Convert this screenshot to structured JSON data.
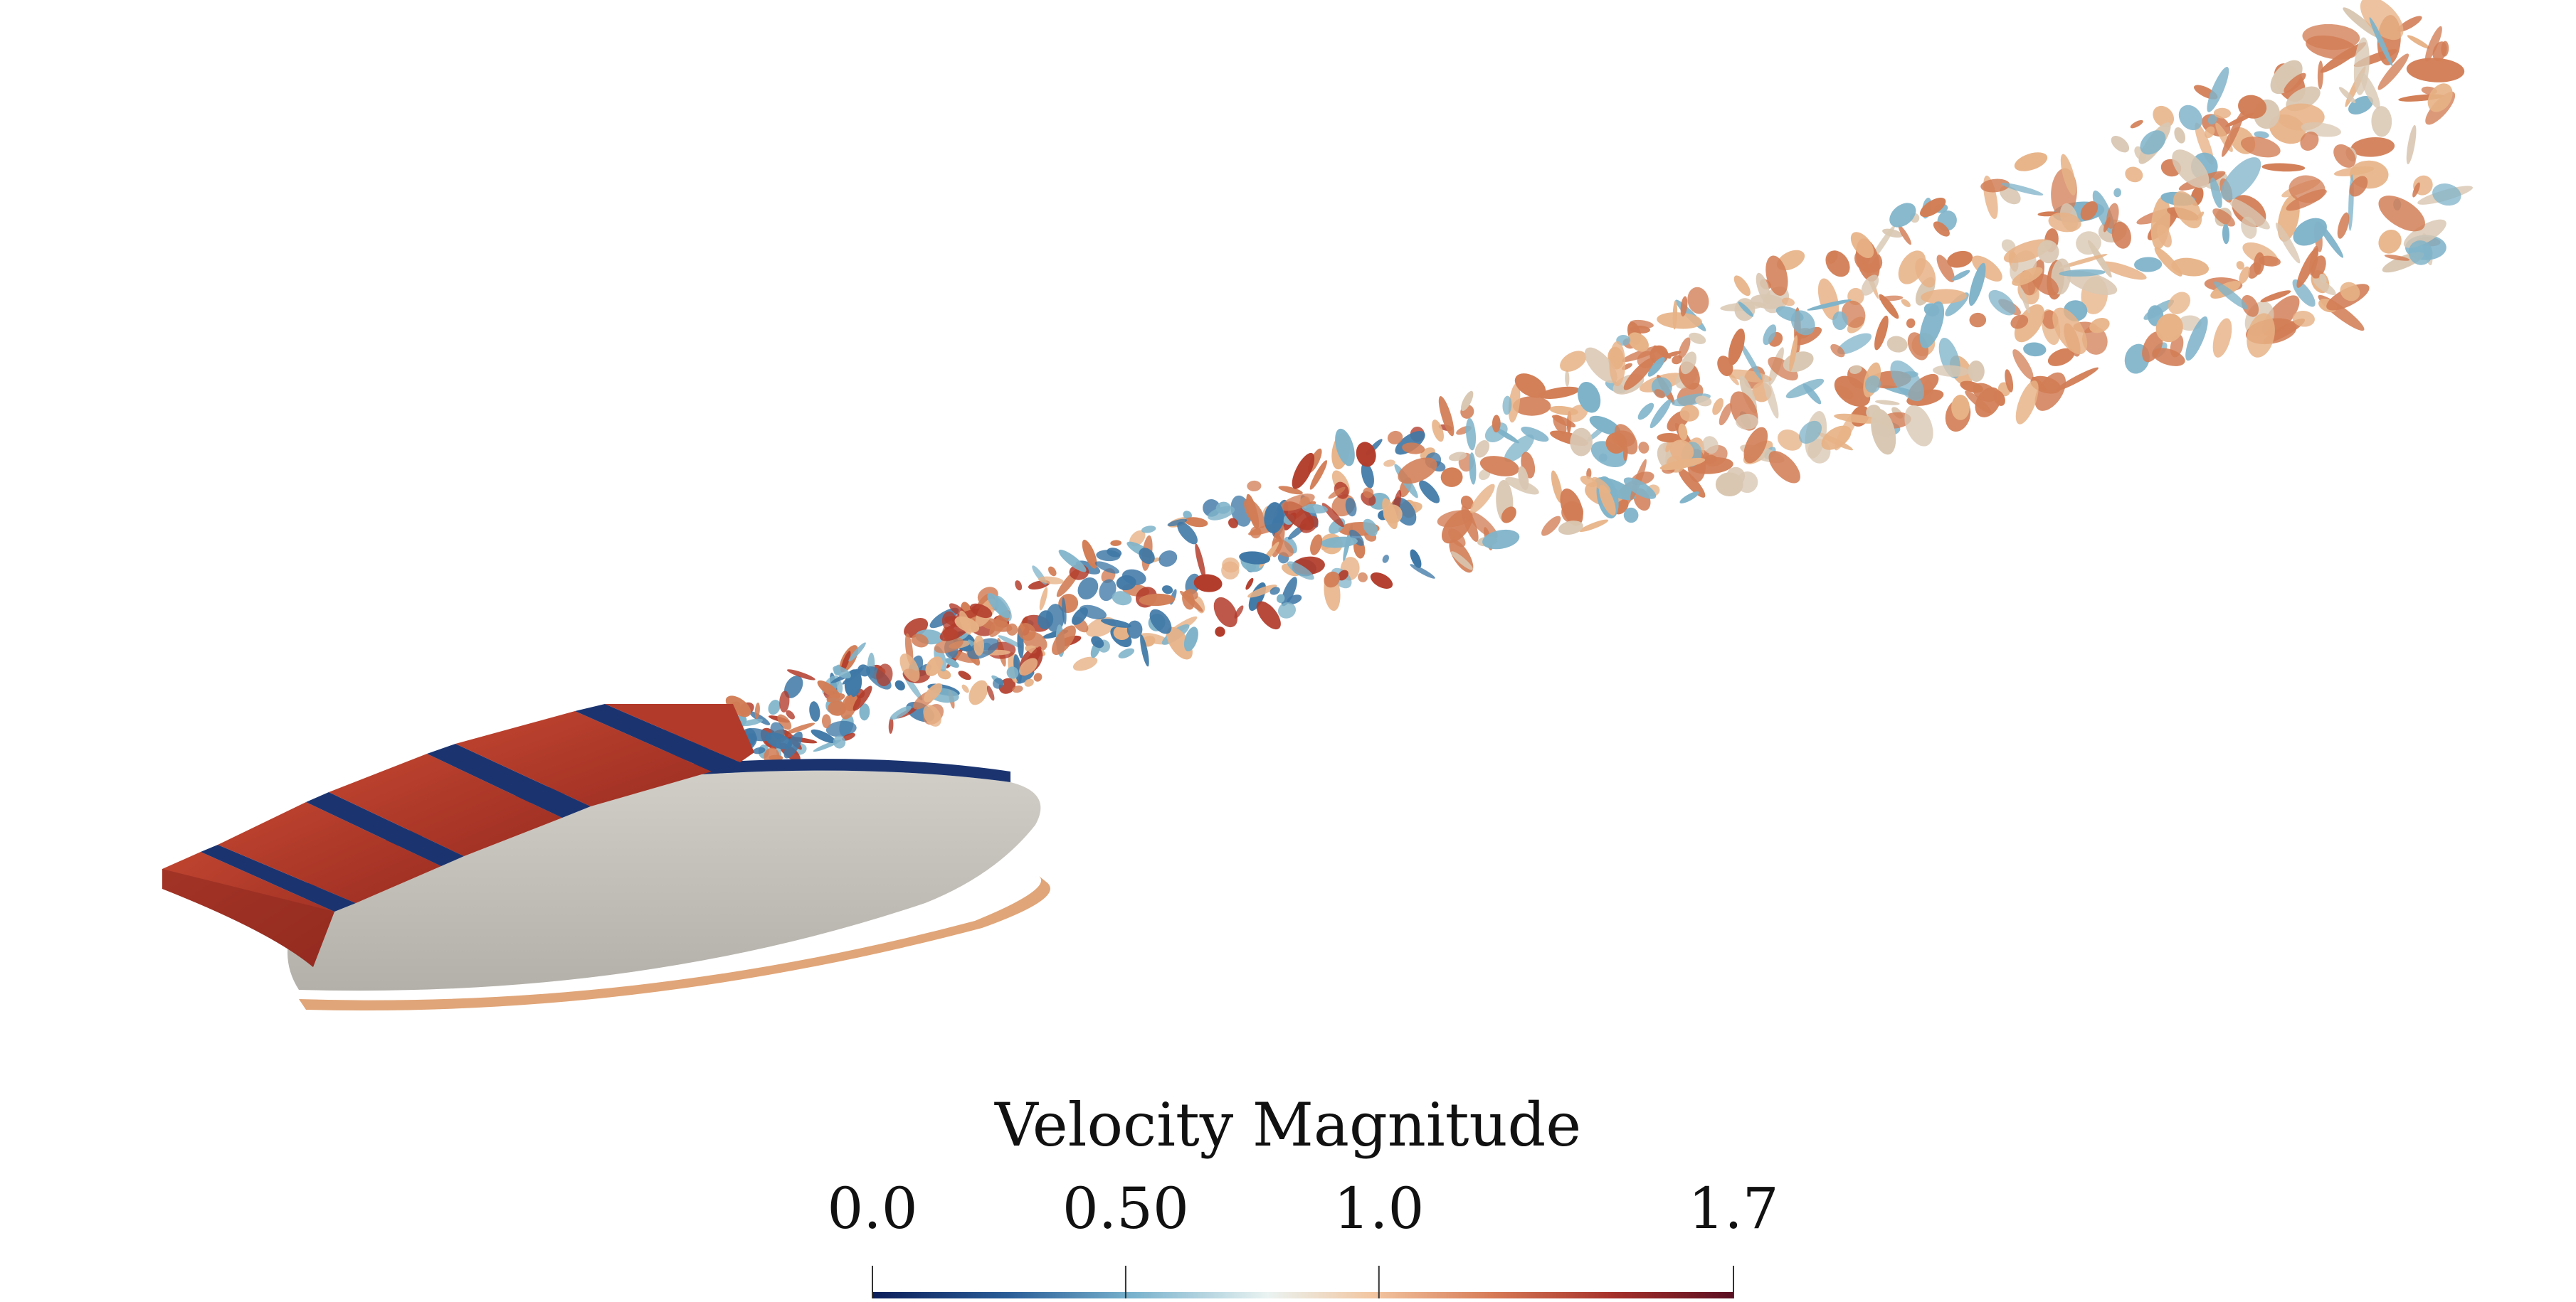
{
  "legend": {
    "title": "Velocity Magnitude",
    "ticks": [
      {
        "label": "0.0",
        "value": 0.0
      },
      {
        "label": "0.50",
        "value": 0.5
      },
      {
        "label": "1.0",
        "value": 1.0
      },
      {
        "label": "1.7",
        "value": 1.7
      }
    ],
    "range": [
      0.0,
      1.7
    ],
    "colormap": [
      "#0c1e5a",
      "#2a5e98",
      "#77b1cc",
      "#eaf3f1",
      "#f2c6a1",
      "#d77a56",
      "#a5302a",
      "#5a0f22"
    ]
  },
  "scene": {
    "wing_top_color": "#ae3426",
    "wing_gap_color": "#1b3470",
    "wing_side_color": "#c2bfb7",
    "wing_edge_color": "#e0a578",
    "wake_colors": [
      "#d27d55",
      "#e7b286",
      "#7fb3c9",
      "#3f78a6",
      "#b23b2a",
      "#d9c7b2"
    ]
  }
}
